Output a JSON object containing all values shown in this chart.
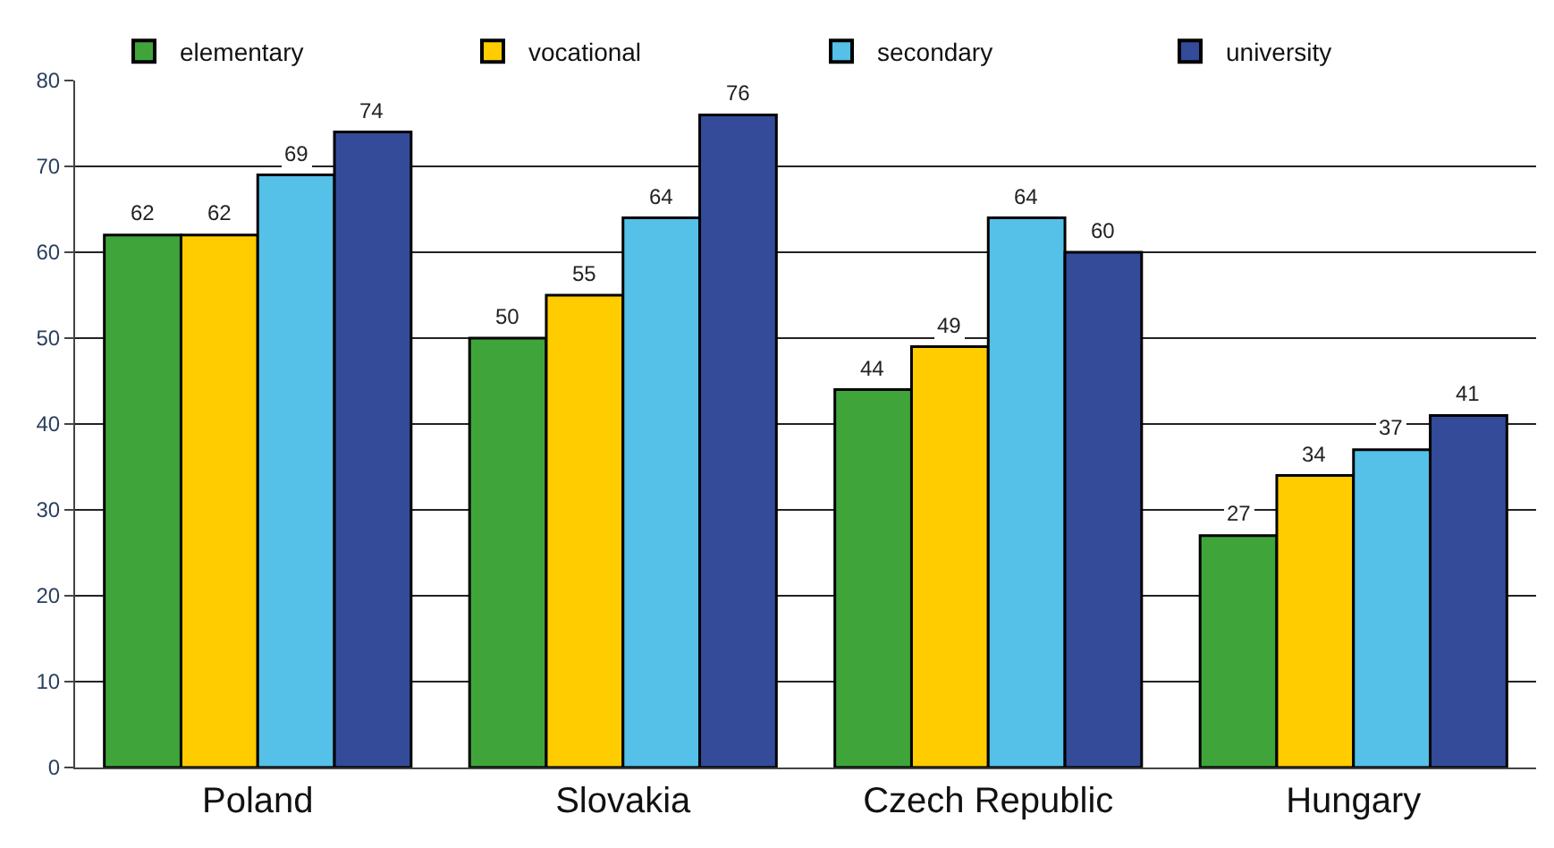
{
  "chart_data": {
    "type": "bar",
    "categories": [
      "Poland",
      "Slovakia",
      "Czech Republic",
      "Hungary"
    ],
    "series": [
      {
        "name": "elementary",
        "color": "#3fa53a",
        "values": [
          62,
          50,
          44,
          27
        ]
      },
      {
        "name": "vocational",
        "color": "#ffcc00",
        "values": [
          62,
          55,
          49,
          34
        ]
      },
      {
        "name": "secondary",
        "color": "#55c0e8",
        "values": [
          69,
          64,
          64,
          37
        ]
      },
      {
        "name": "university",
        "color": "#334b99",
        "values": [
          74,
          76,
          60,
          41
        ]
      }
    ],
    "ylim": [
      0,
      80
    ],
    "yticks": [
      0,
      10,
      20,
      30,
      40,
      50,
      60,
      70,
      80
    ],
    "grid": "y",
    "legend": "top",
    "data_labels": true
  }
}
